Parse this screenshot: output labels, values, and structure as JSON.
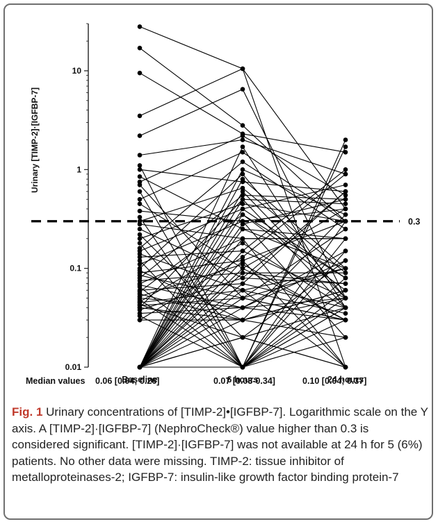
{
  "chart_data": {
    "type": "line",
    "ylabel": "Urinary [TIMP-2]·[IGFBP-7]",
    "y_scale": "log",
    "ylim": [
      0.01,
      30
    ],
    "y_ticks": [
      {
        "value": 10,
        "label": "10"
      },
      {
        "value": 1,
        "label": "1"
      },
      {
        "value": 0.1,
        "label": "0.1"
      },
      {
        "value": 0.01,
        "label": "0.01"
      }
    ],
    "categories": [
      "Baseline",
      "6 hours",
      "24 hours"
    ],
    "threshold": {
      "value": 0.3,
      "label": "0.3"
    },
    "medians_label": "Median values",
    "medians": [
      "0.06 [0.04; 0.26]",
      "0.07 [0.03-0.34]",
      "0.10 [0.04; 0.37]"
    ],
    "grid": false,
    "patients": [
      [
        28,
        10.5,
        0.4
      ],
      [
        17,
        2.8,
        0.3
      ],
      [
        9.5,
        2.3,
        1.5
      ],
      [
        3.5,
        10.5,
        0.01
      ],
      [
        2.2,
        6.5,
        0.05
      ],
      [
        1.4,
        2.0,
        0.9
      ],
      [
        1.1,
        0.01,
        2.0
      ],
      [
        1.0,
        0.75,
        0.6
      ],
      [
        0.85,
        0.25,
        0.2
      ],
      [
        0.75,
        2.2,
        0.55
      ],
      [
        0.7,
        0.05,
        0.1
      ],
      [
        0.6,
        0.01,
        0.04
      ],
      [
        0.5,
        1.5,
        0.3
      ],
      [
        0.45,
        0.1,
        0.03
      ],
      [
        0.38,
        0.3,
        0.4
      ],
      [
        0.33,
        0.01,
        1.7
      ],
      [
        0.3,
        0.65,
        0.09
      ],
      [
        0.28,
        0.2,
        0.2
      ],
      [
        0.25,
        0.08,
        0.6
      ],
      [
        0.22,
        0.02,
        0.04
      ],
      [
        0.2,
        0.45,
        0.3
      ],
      [
        0.18,
        0.01,
        0.05
      ],
      [
        0.16,
        1.2,
        0.25
      ],
      [
        0.15,
        0.4,
        0.08
      ],
      [
        0.14,
        0.06,
        0.035
      ],
      [
        0.13,
        0.15,
        1.0
      ],
      [
        0.12,
        0.01,
        0.15
      ],
      [
        0.11,
        0.3,
        0.02
      ],
      [
        0.1,
        0.9,
        0.05
      ],
      [
        0.095,
        0.03,
        0.06
      ],
      [
        0.09,
        0.12,
        0.3
      ],
      [
        0.085,
        0.05,
        0.03
      ],
      [
        0.08,
        0.55,
        0.5
      ],
      [
        0.075,
        0.09,
        0.07
      ],
      [
        0.07,
        0.2,
        0.01
      ],
      [
        0.068,
        0.04,
        0.12
      ],
      [
        0.065,
        0.01,
        0.2
      ],
      [
        0.06,
        0.07,
        0.04
      ],
      [
        0.058,
        0.35,
        0.06
      ],
      [
        0.055,
        0.03,
        0.35
      ],
      [
        0.052,
        0.11,
        0.03
      ],
      [
        0.05,
        0.04,
        0.05
      ],
      [
        0.048,
        0.01,
        0.08
      ],
      [
        0.046,
        0.18,
        0.04
      ],
      [
        0.045,
        0.06,
        0.1
      ],
      [
        0.043,
        0.02,
        0.01
      ],
      [
        0.042,
        0.05,
        0.25
      ],
      [
        0.04,
        0.03,
        0.05
      ],
      [
        0.04,
        0.5,
        0.45
      ],
      [
        0.038,
        0.08,
        0.07
      ],
      [
        0.035,
        0.04,
        0.03
      ],
      [
        0.033,
        0.01,
        0.04
      ],
      [
        0.03,
        0.13,
        0.9
      ],
      [
        0.03,
        0.03,
        0.06
      ],
      [
        0.01,
        0.25,
        0.1
      ],
      [
        0.01,
        0.6,
        0.05
      ],
      [
        0.01,
        0.05,
        0.03
      ],
      [
        0.01,
        0.01,
        0.02
      ],
      [
        0.01,
        0.02,
        0.01
      ],
      [
        0.01,
        0.1,
        0.4
      ],
      [
        0.01,
        0.35,
        0.08
      ],
      [
        0.01,
        0.07,
        0.6
      ],
      [
        0.01,
        1.7,
        0.04
      ],
      [
        0.01,
        0.04,
        0.15
      ],
      [
        0.01,
        0.01,
        0.3
      ],
      [
        0.01,
        0.15,
        0.05
      ],
      [
        0.01,
        0.4,
        0.7
      ],
      [
        0.01,
        0.03,
        0.02
      ],
      [
        0.01,
        0.8,
        0.1
      ],
      [
        0.01,
        0.06,
        0.01
      ],
      [
        0.01,
        0.2,
        0.2
      ],
      [
        0.01,
        0.01,
        0.06
      ],
      [
        0.01,
        1.0,
        0.35
      ],
      [
        0.01,
        0.09,
        0.09
      ],
      [
        0.01,
        0.5,
        0.04
      ],
      [
        0.01,
        0.12,
        0.01
      ],
      [
        0.01,
        0.28,
        0.5
      ],
      [
        0.01,
        0.01,
        0.03
      ],
      [
        0.01,
        0.02,
        0.12
      ]
    ]
  },
  "caption": {
    "label": "Fig. 1",
    "text": " Urinary concentrations of [TIMP-2]•[IGFBP-7]. Logarithmic scale on the Y axis. A [TIMP-2]·[IGFBP-7] (NephroCheck®) value higher than 0.3 is considered significant. [TIMP-2]·[IGFBP-7] was not available at 24 h for 5 (6%) patients. No other data were missing. TIMP-2: tissue inhibitor of metalloproteinases-2; IGFBP-7: insulin-like growth factor binding protein-7"
  }
}
